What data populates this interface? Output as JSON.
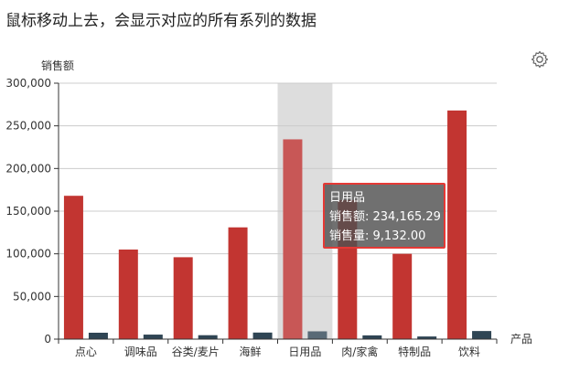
{
  "page": {
    "title": "鼠标移动上去，会显示对应的所有系列的数据"
  },
  "toolbox": {
    "icon": "gear-icon"
  },
  "tooltip": {
    "category": "日用品",
    "line1": "销售额: 234,165.29",
    "line2": "销售量: 9,132.00"
  },
  "chart_data": {
    "type": "bar",
    "xlabel": "产品",
    "ylabel": "销售额",
    "ylim": [
      0,
      300000
    ],
    "yticks": [
      0,
      50000,
      100000,
      150000,
      200000,
      250000,
      300000
    ],
    "ytick_labels": [
      "0",
      "50,000",
      "100,000",
      "150,000",
      "200,000",
      "250,000",
      "300,000"
    ],
    "grid": true,
    "categories": [
      "点心",
      "调味品",
      "谷类/麦片",
      "海鲜",
      "日用品",
      "肉/家禽",
      "特制品",
      "饮料"
    ],
    "highlighted_category": "日用品",
    "series": [
      {
        "name": "销售额",
        "color": "#c23531",
        "values": [
          168000,
          105000,
          96000,
          131000,
          234165.29,
          163000,
          100000,
          268000
        ]
      },
      {
        "name": "销售量",
        "color": "#2f4554",
        "values": [
          7500,
          5300,
          4600,
          7700,
          9132,
          4400,
          3100,
          9500
        ]
      }
    ]
  }
}
